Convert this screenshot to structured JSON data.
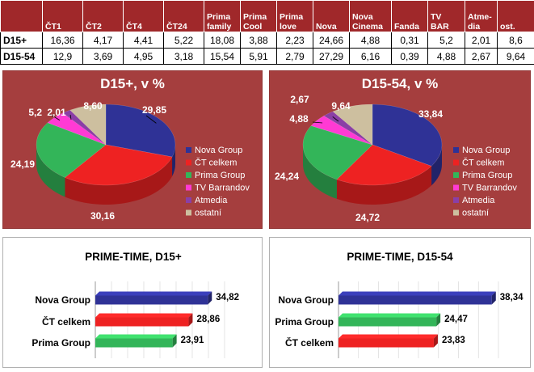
{
  "table": {
    "columns": [
      "",
      "ČT1",
      "ČT2",
      "ČT4",
      "ČT24",
      "Prima family",
      "Prima Cool",
      "Prima love",
      "Nova",
      "Nova Cinema",
      "Fanda",
      "TV BAR",
      "Atme-dia",
      "ost."
    ],
    "rows": [
      {
        "label": "D15+",
        "values": [
          "16,36",
          "4,17",
          "4,41",
          "5,22",
          "18,08",
          "3,88",
          "2,23",
          "24,66",
          "4,88",
          "0,31",
          "5,2",
          "2,01",
          "8,6"
        ]
      },
      {
        "label": "D15-54",
        "values": [
          "12,9",
          "3,69",
          "4,95",
          "3,18",
          "15,54",
          "5,91",
          "2,79",
          "27,29",
          "6,16",
          "0,39",
          "4,88",
          "2,67",
          "9,64"
        ]
      }
    ]
  },
  "colors": {
    "nova": "#2f3296",
    "ct": "#ee2222",
    "prima": "#33b559",
    "tvbar": "#ff3ad4",
    "atmedia": "#8a3fa6",
    "ostatni": "#cdbf9f",
    "panel": "#a53e3e",
    "header": "#a0282a"
  },
  "chart_data": [
    {
      "type": "pie",
      "title": "D15+, v %",
      "categories": [
        "Nova Group",
        "ČT celkem",
        "Prima Group",
        "TV Barrandov",
        "Atmedia",
        "ostatní"
      ],
      "values": [
        29.85,
        30.16,
        24.19,
        5.2,
        2.01,
        8.6
      ],
      "labels": [
        "29,85",
        "30,16",
        "24,19",
        "5,2",
        "2,01",
        "8,60"
      ],
      "legend": "right"
    },
    {
      "type": "pie",
      "title": "D15-54, v %",
      "categories": [
        "Nova Group",
        "ČT celkem",
        "Prima Group",
        "TV Barrandov",
        "Atmedia",
        "ostatní"
      ],
      "values": [
        33.84,
        24.72,
        24.24,
        4.88,
        2.67,
        9.64
      ],
      "labels": [
        "33,84",
        "24,72",
        "24,24",
        "4,88",
        "2,67",
        "9,64"
      ],
      "legend": "right"
    },
    {
      "type": "bar",
      "orientation": "horizontal",
      "title": "PRIME-TIME, D15+",
      "categories": [
        "Nova Group",
        "ČT celkem",
        "Prima Group"
      ],
      "values": [
        34.82,
        28.86,
        23.91
      ],
      "labels": [
        "34,82",
        "28,86",
        "23,91"
      ],
      "xlim": [
        0,
        40
      ]
    },
    {
      "type": "bar",
      "orientation": "horizontal",
      "title": "PRIME-TIME, D15-54",
      "categories": [
        "Nova Group",
        "Prima Group",
        "ČT celkem"
      ],
      "values": [
        38.34,
        24.47,
        23.83
      ],
      "labels": [
        "38,34",
        "24,47",
        "23,83"
      ],
      "xlim": [
        0,
        40
      ]
    }
  ]
}
